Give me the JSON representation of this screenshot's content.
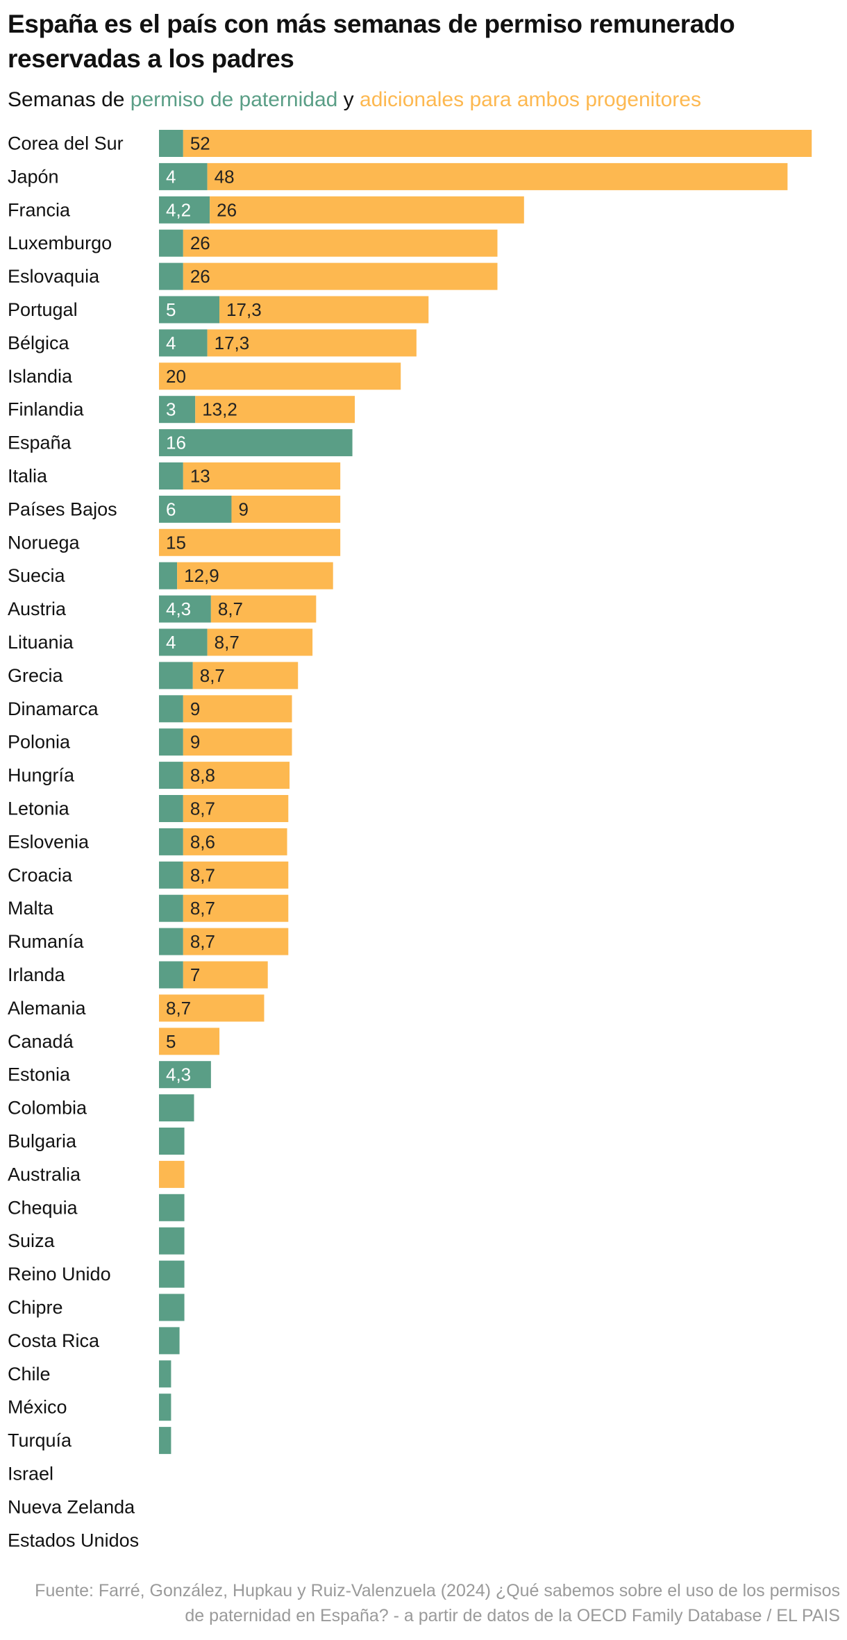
{
  "title": "España es el país con más semanas de permiso remunerado reservadas a los padres",
  "subtitle": {
    "prefix": "Semanas de",
    "paternity_label": "permiso de paternidad",
    "connector": "y",
    "shared_label": "adicionales para ambos progenitores"
  },
  "source": "Fuente: Farré, González, Hupkau y Ruiz-Valenzuela (2024) ¿Qué sabemos sobre el uso de los permisos de paternidad en España? - a partir de datos de la OECD Family Database / EL PAIS",
  "colors": {
    "paternity": "#5a9e86",
    "shared": "#fdb850",
    "text": "#111111",
    "source": "#9a9a9a"
  },
  "chart_data": {
    "type": "bar",
    "orientation": "horizontal",
    "stacked": true,
    "title": "España es el país con más semanas de permiso remunerado reservadas a los padres",
    "xlabel": "Semanas",
    "ylabel": "",
    "xlim": [
      0,
      56
    ],
    "series": [
      {
        "name": "permiso de paternidad",
        "color": "#5a9e86",
        "values": [
          2,
          4,
          4.2,
          2,
          2,
          5,
          4,
          0,
          3,
          16,
          2,
          6,
          0,
          1.5,
          4.3,
          4,
          2.8,
          2,
          2,
          2,
          2,
          2,
          2,
          2,
          2,
          2,
          0,
          0,
          4.3,
          2.9,
          2.1,
          0,
          2.1,
          2.1,
          2.1,
          2.1,
          1.7,
          1,
          1,
          1,
          0,
          0,
          0
        ],
        "labels": [
          "",
          "4",
          "4,2",
          "",
          "",
          "5",
          "4",
          "",
          "3",
          "16",
          "",
          "6",
          "",
          "",
          "4,3",
          "4",
          "",
          "",
          "",
          "",
          "",
          "",
          "",
          "",
          "",
          "",
          "",
          "",
          "4,3",
          "",
          "",
          "",
          "",
          "",
          "",
          "",
          "",
          "",
          "",
          "",
          "",
          "",
          ""
        ]
      },
      {
        "name": "adicionales para ambos progenitores",
        "color": "#fdb850",
        "values": [
          52,
          48,
          26,
          26,
          26,
          17.3,
          17.3,
          20,
          13.2,
          0,
          13,
          9,
          15,
          12.9,
          8.7,
          8.7,
          8.7,
          9,
          9,
          8.8,
          8.7,
          8.6,
          8.7,
          8.7,
          8.7,
          7,
          8.7,
          5,
          0,
          0,
          0,
          2.1,
          0,
          0,
          0,
          0,
          0,
          0,
          0,
          0,
          0,
          0,
          0
        ],
        "labels": [
          "52",
          "48",
          "26",
          "26",
          "26",
          "17,3",
          "17,3",
          "20",
          "13,2",
          "",
          "13",
          "9",
          "15",
          "12,9",
          "8,7",
          "8,7",
          "8,7",
          "9",
          "9",
          "8,8",
          "8,7",
          "8,6",
          "8,7",
          "8,7",
          "8,7",
          "7",
          "8,7",
          "5",
          "",
          "",
          "",
          "",
          "",
          "",
          "",
          "",
          "",
          "",
          "",
          "",
          "",
          "",
          ""
        ]
      }
    ],
    "categories": [
      "Corea del Sur",
      "Japón",
      "Francia",
      "Luxemburgo",
      "Eslovaquia",
      "Portugal",
      "Bélgica",
      "Islandia",
      "Finlandia",
      "España",
      "Italia",
      "Países Bajos",
      "Noruega",
      "Suecia",
      "Austria",
      "Lituania",
      "Grecia",
      "Dinamarca",
      "Polonia",
      "Hungría",
      "Letonia",
      "Eslovenia",
      "Croacia",
      "Malta",
      "Rumanía",
      "Irlanda",
      "Alemania",
      "Canadá",
      "Estonia",
      "Colombia",
      "Bulgaria",
      "Australia",
      "Chequia",
      "Suiza",
      "Reino Unido",
      "Chipre",
      "Costa Rica",
      "Chile",
      "México",
      "Turquía",
      "Israel",
      "Nueva Zelanda",
      "Estados Unidos"
    ]
  }
}
